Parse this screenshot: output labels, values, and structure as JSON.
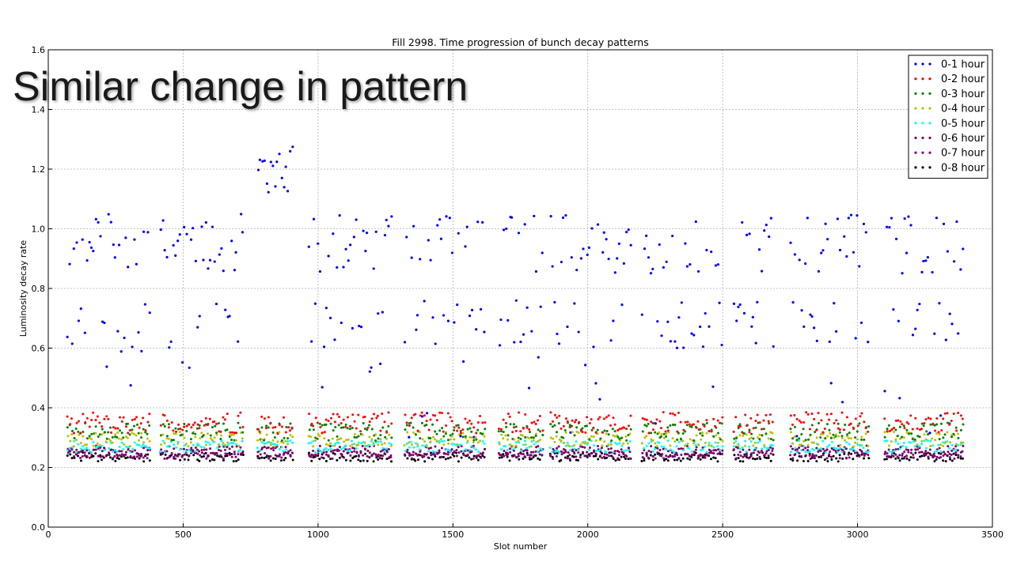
{
  "slide": {
    "heading": "Similar change in pattern"
  },
  "chart_data": {
    "type": "scatter",
    "title": "Fill 2998. Time progression of bunch decay patterns",
    "xlabel": "Slot number",
    "ylabel": "Luminosity decay rate",
    "xlim": [
      0,
      3500
    ],
    "ylim": [
      0.0,
      1.6
    ],
    "xticks": [
      0,
      500,
      1000,
      1500,
      2000,
      2500,
      3000,
      3500
    ],
    "yticks": [
      0.0,
      0.2,
      0.4,
      0.6,
      0.8,
      1.0,
      1.2,
      1.4,
      1.6
    ],
    "grid": true,
    "legend_position": "top-right",
    "trains": [
      [
        70,
        375
      ],
      [
        415,
        720
      ],
      [
        775,
        910
      ],
      [
        965,
        1270
      ],
      [
        1320,
        1620
      ],
      [
        1670,
        1830
      ],
      [
        1860,
        2160
      ],
      [
        2200,
        2500
      ],
      [
        2540,
        2690
      ],
      [
        2750,
        3040
      ],
      [
        3100,
        3390
      ]
    ],
    "series": [
      {
        "name": "0-1 hour",
        "color": "#0000ff",
        "base": 0.85,
        "spread": 0.22
      },
      {
        "name": "0-2 hour",
        "color": "#ff0000",
        "base": 0.35,
        "spread": 0.035
      },
      {
        "name": "0-3 hour",
        "color": "#008000",
        "base": 0.32,
        "spread": 0.03
      },
      {
        "name": "0-4 hour",
        "color": "#bfbf00",
        "base": 0.295,
        "spread": 0.025
      },
      {
        "name": "0-5 hour",
        "color": "#00ffff",
        "base": 0.27,
        "spread": 0.02
      },
      {
        "name": "0-6 hour",
        "color": "#800060",
        "base": 0.255,
        "spread": 0.018
      },
      {
        "name": "0-7 hour",
        "color": "#7a007a",
        "base": 0.245,
        "spread": 0.016
      },
      {
        "name": "0-8 hour",
        "color": "#000000",
        "base": 0.235,
        "spread": 0.015
      }
    ],
    "highlight_train": {
      "range": [
        775,
        910
      ],
      "series_0_base": 1.2,
      "series_0_spread": 0.08
    }
  }
}
